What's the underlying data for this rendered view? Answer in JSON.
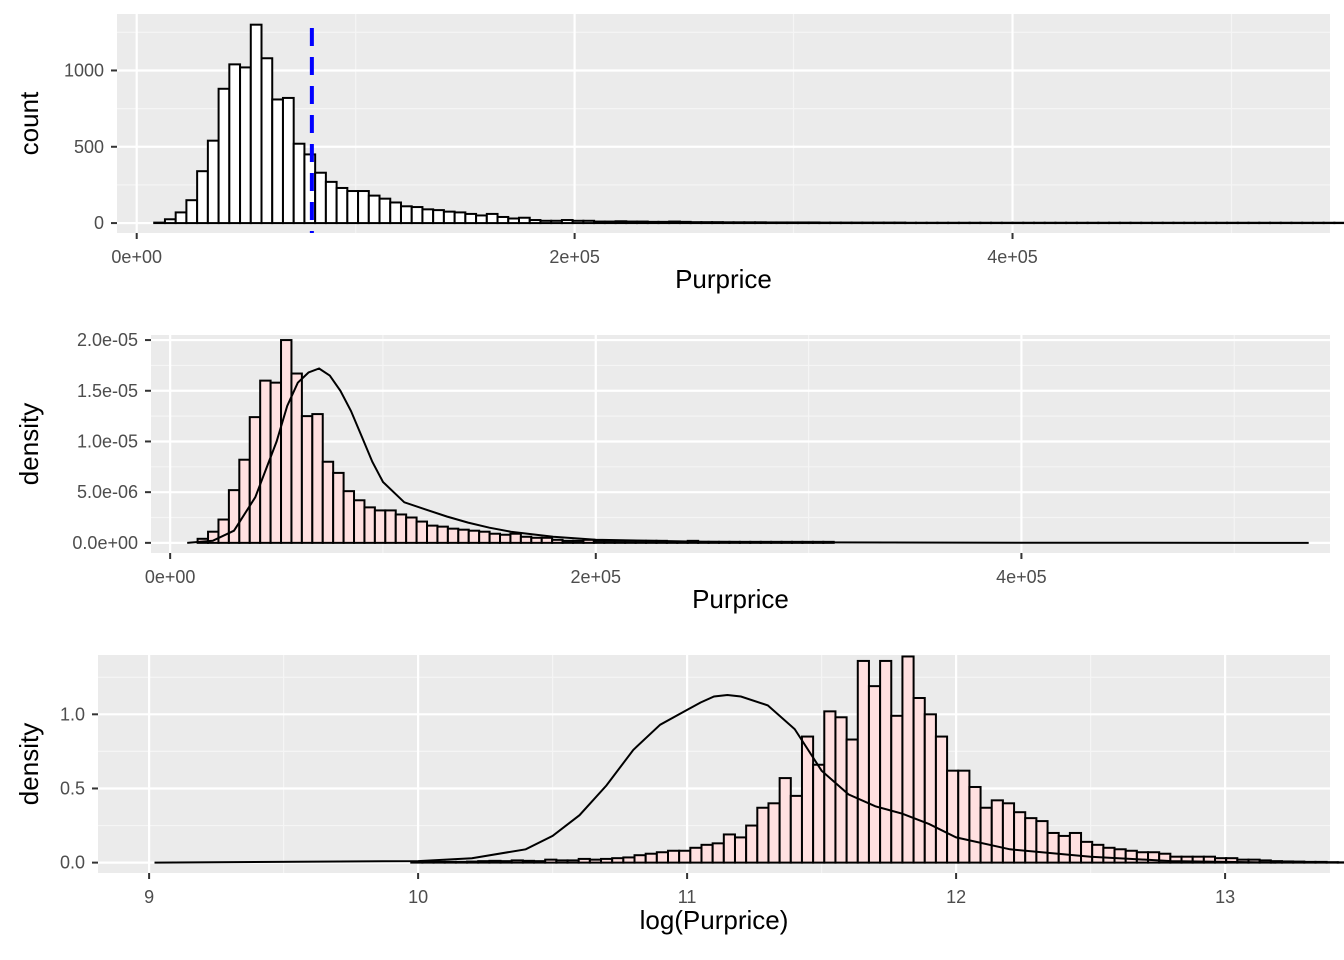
{
  "colors": {
    "panel_background": "#ebebeb",
    "grid_major": "#ffffff",
    "grid_minor": "#f5f5f5",
    "bar_outline": "#000000",
    "count_fill": "#ffffff",
    "density_fill": "#ffe0e0",
    "density_line": "#000000",
    "vline": "#0000ff"
  },
  "chart_data": [
    {
      "type": "bar",
      "subtype": "histogram",
      "xlabel": "Purprice",
      "ylabel": "count",
      "xlim": [
        -9000,
        545000
      ],
      "ylim": [
        -65,
        1370
      ],
      "x_ticks": [
        0,
        200000,
        400000
      ],
      "x_tick_labels": [
        "0e+00",
        "2e+05",
        "4e+05"
      ],
      "y_ticks": [
        0,
        500,
        1000
      ],
      "y_tick_labels": [
        "0",
        "500",
        "1000"
      ],
      "bin_start": 8000,
      "bin_width": 4900,
      "values": [
        3,
        25,
        70,
        150,
        340,
        540,
        880,
        1040,
        1020,
        1300,
        1080,
        810,
        820,
        520,
        450,
        330,
        270,
        230,
        210,
        210,
        180,
        160,
        135,
        110,
        105,
        90,
        85,
        75,
        70,
        60,
        50,
        60,
        40,
        30,
        35,
        20,
        15,
        15,
        20,
        15,
        15,
        10,
        10,
        12,
        10,
        10,
        8,
        8,
        10,
        8,
        6,
        6,
        6,
        5,
        5,
        5,
        5,
        4,
        4,
        4,
        4,
        4,
        3,
        3,
        3,
        3,
        3,
        3,
        3,
        3,
        2,
        2,
        2,
        2,
        2,
        2,
        2,
        2,
        2,
        2,
        2,
        2,
        2,
        2,
        2,
        2,
        2,
        2,
        2,
        2,
        2,
        2,
        2,
        2,
        2,
        2,
        2,
        2,
        2,
        2,
        2,
        2,
        2,
        2,
        2,
        2,
        2,
        2,
        2,
        2,
        2,
        2,
        2,
        2,
        2,
        2
      ],
      "vline": {
        "x": 80000,
        "style": "dashed",
        "color": "#0000ff"
      }
    },
    {
      "type": "bar",
      "subtype": "histogram_density",
      "xlabel": "Purprice",
      "ylabel": "density",
      "xlim": [
        -9000,
        545000
      ],
      "ylim": [
        -1e-06,
        2.05e-05
      ],
      "x_ticks": [
        0,
        200000,
        400000
      ],
      "x_tick_labels": [
        "0e+00",
        "2e+05",
        "4e+05"
      ],
      "y_ticks": [
        0,
        5e-06,
        1e-05,
        1.5e-05,
        2e-05
      ],
      "y_tick_labels": [
        "0.0e+00",
        "5.0e-06",
        "1.0e-05",
        "1.5e-05",
        "2.0e-05"
      ],
      "bin_start": 8000,
      "bin_width": 4900,
      "values": [
        0.0,
        4e-07,
        1.1e-06,
        2.3e-06,
        5.2e-06,
        8.2e-06,
        1.24e-05,
        1.6e-05,
        1.58e-05,
        2e-05,
        1.67e-05,
        1.25e-05,
        1.27e-05,
        8e-06,
        6.9e-06,
        5.1e-06,
        4.2e-06,
        3.5e-06,
        3.2e-06,
        3.2e-06,
        2.8e-06,
        2.5e-06,
        2.1e-06,
        1.7e-06,
        1.6e-06,
        1.4e-06,
        1.3e-06,
        1.2e-06,
        1.1e-06,
        9e-07,
        8e-07,
        9e-07,
        6e-07,
        5e-07,
        5e-07,
        3e-07,
        2e-07,
        2e-07,
        3e-07,
        2e-07,
        2e-07,
        2e-07,
        2e-07,
        2e-07,
        2e-07,
        2e-07,
        1e-07,
        1e-07,
        2e-07,
        1e-07,
        1e-07,
        1e-07,
        1e-07,
        1e-07,
        1e-07,
        1e-07,
        1e-07,
        1e-07,
        1e-07,
        1e-07,
        1e-07,
        1e-07,
        0.0,
        0.0,
        0.0,
        0.0,
        0.0,
        0.0,
        0.0,
        0.0,
        0.0,
        0.0,
        0.0,
        0.0,
        0.0,
        0.0,
        0.0,
        0.0,
        0.0,
        0.0,
        0.0,
        0.0,
        0.0,
        0.0,
        0.0,
        0.0,
        0.0,
        0.0,
        0.0,
        0.0,
        0.0,
        0.0,
        0.0,
        0.0,
        0.0,
        0.0,
        0.0,
        0.0,
        0.0,
        0.0,
        0.0,
        0.0,
        0.0,
        0.0,
        0.0,
        0.0,
        0.0,
        0.0,
        0.0,
        0.0,
        0.0,
        0.0,
        0.0,
        0.0,
        0.0
      ],
      "density_curve": {
        "x": [
          8000,
          20000,
          30000,
          40000,
          50000,
          55000,
          60000,
          65000,
          70000,
          75000,
          80000,
          85000,
          90000,
          95000,
          100000,
          110000,
          120000,
          130000,
          140000,
          150000,
          160000,
          180000,
          200000,
          250000,
          300000,
          400000,
          535000
        ],
        "y": [
          0,
          2e-07,
          1.2e-06,
          4.5e-06,
          1e-05,
          1.35e-05,
          1.58e-05,
          1.68e-05,
          1.72e-05,
          1.65e-05,
          1.5e-05,
          1.3e-05,
          1.05e-05,
          8e-06,
          6e-06,
          4e-06,
          3.3e-06,
          2.6e-06,
          2e-06,
          1.5e-06,
          1.1e-06,
          6e-07,
          3e-07,
          1e-07,
          5e-08,
          2e-08,
          0
        ]
      }
    },
    {
      "type": "bar",
      "subtype": "histogram_density",
      "xlabel": "log(Purprice)",
      "ylabel": "density",
      "xlim": [
        8.81,
        13.39
      ],
      "ylim": [
        -0.07,
        1.4
      ],
      "x_ticks": [
        9,
        10,
        11,
        12,
        13
      ],
      "x_tick_labels": [
        "9",
        "10",
        "11",
        "12",
        "13"
      ],
      "y_ticks": [
        0,
        0.5,
        1.0
      ],
      "y_tick_labels": [
        "0.0",
        "0.5",
        "1.0"
      ],
      "bin_start": 9.02,
      "bin_width": 0.0415,
      "values": [
        0,
        0,
        0,
        0,
        0,
        0,
        0,
        0,
        0,
        0,
        0,
        0,
        0,
        0,
        0,
        0,
        0,
        0,
        0,
        0,
        0,
        0,
        0,
        0.005,
        0.005,
        0.005,
        0.005,
        0.005,
        0.007,
        0.01,
        0.012,
        0.01,
        0.015,
        0.012,
        0.01,
        0.02,
        0.015,
        0.015,
        0.025,
        0.02,
        0.025,
        0.03,
        0.035,
        0.05,
        0.06,
        0.07,
        0.08,
        0.08,
        0.1,
        0.12,
        0.13,
        0.19,
        0.17,
        0.25,
        0.37,
        0.4,
        0.57,
        0.45,
        0.85,
        0.66,
        1.02,
        0.98,
        0.83,
        1.36,
        1.19,
        1.36,
        0.99,
        1.39,
        1.11,
        1.0,
        0.85,
        0.62,
        0.62,
        0.51,
        0.37,
        0.42,
        0.4,
        0.34,
        0.3,
        0.28,
        0.2,
        0.18,
        0.2,
        0.14,
        0.12,
        0.1,
        0.09,
        0.08,
        0.07,
        0.07,
        0.06,
        0.04,
        0.04,
        0.04,
        0.04,
        0.03,
        0.03,
        0.02,
        0.02,
        0.015,
        0.01,
        0.008,
        0.007,
        0.005,
        0.005,
        0.003,
        0.002,
        0.002
      ],
      "density_curve": {
        "x": [
          9.02,
          10.0,
          10.2,
          10.4,
          10.5,
          10.6,
          10.7,
          10.8,
          10.9,
          11.0,
          11.05,
          11.1,
          11.15,
          11.2,
          11.3,
          11.4,
          11.5,
          11.6,
          11.7,
          11.8,
          11.9,
          12.0,
          12.2,
          12.5,
          12.8,
          13.19
        ],
        "y": [
          0.0,
          0.01,
          0.03,
          0.09,
          0.18,
          0.32,
          0.52,
          0.76,
          0.93,
          1.03,
          1.08,
          1.12,
          1.13,
          1.12,
          1.06,
          0.9,
          0.62,
          0.46,
          0.38,
          0.33,
          0.26,
          0.17,
          0.09,
          0.04,
          0.01,
          0.0
        ]
      }
    }
  ]
}
